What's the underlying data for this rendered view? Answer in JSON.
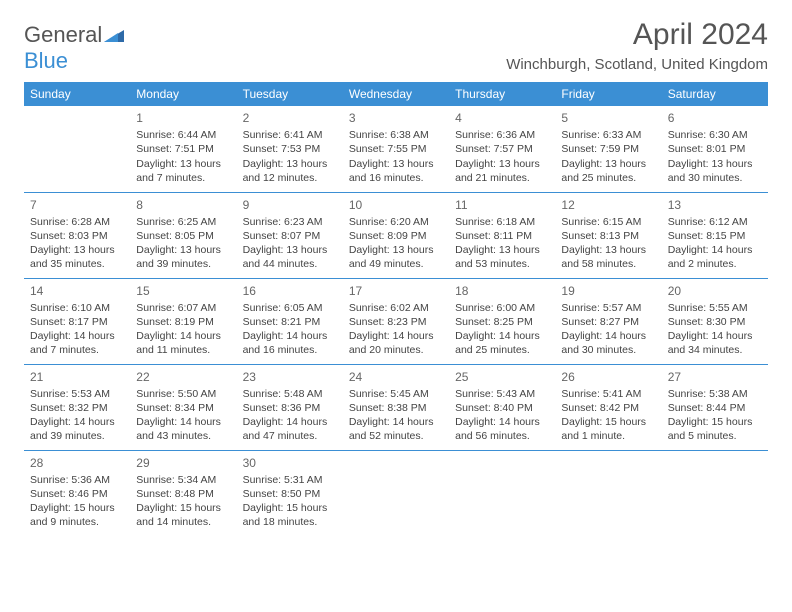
{
  "brand": {
    "name_part1": "General",
    "name_part2": "Blue"
  },
  "title": "April 2024",
  "location": "Winchburgh, Scotland, United Kingdom",
  "colors": {
    "header_bg": "#3b8fd4",
    "header_text": "#ffffff",
    "row_border": "#3b8fd4",
    "page_bg": "#ffffff",
    "text": "#444444",
    "title_text": "#555555"
  },
  "weekdays": [
    "Sunday",
    "Monday",
    "Tuesday",
    "Wednesday",
    "Thursday",
    "Friday",
    "Saturday"
  ],
  "weeks": [
    [
      null,
      {
        "n": "1",
        "sr": "Sunrise: 6:44 AM",
        "ss": "Sunset: 7:51 PM",
        "dl": "Daylight: 13 hours and 7 minutes."
      },
      {
        "n": "2",
        "sr": "Sunrise: 6:41 AM",
        "ss": "Sunset: 7:53 PM",
        "dl": "Daylight: 13 hours and 12 minutes."
      },
      {
        "n": "3",
        "sr": "Sunrise: 6:38 AM",
        "ss": "Sunset: 7:55 PM",
        "dl": "Daylight: 13 hours and 16 minutes."
      },
      {
        "n": "4",
        "sr": "Sunrise: 6:36 AM",
        "ss": "Sunset: 7:57 PM",
        "dl": "Daylight: 13 hours and 21 minutes."
      },
      {
        "n": "5",
        "sr": "Sunrise: 6:33 AM",
        "ss": "Sunset: 7:59 PM",
        "dl": "Daylight: 13 hours and 25 minutes."
      },
      {
        "n": "6",
        "sr": "Sunrise: 6:30 AM",
        "ss": "Sunset: 8:01 PM",
        "dl": "Daylight: 13 hours and 30 minutes."
      }
    ],
    [
      {
        "n": "7",
        "sr": "Sunrise: 6:28 AM",
        "ss": "Sunset: 8:03 PM",
        "dl": "Daylight: 13 hours and 35 minutes."
      },
      {
        "n": "8",
        "sr": "Sunrise: 6:25 AM",
        "ss": "Sunset: 8:05 PM",
        "dl": "Daylight: 13 hours and 39 minutes."
      },
      {
        "n": "9",
        "sr": "Sunrise: 6:23 AM",
        "ss": "Sunset: 8:07 PM",
        "dl": "Daylight: 13 hours and 44 minutes."
      },
      {
        "n": "10",
        "sr": "Sunrise: 6:20 AM",
        "ss": "Sunset: 8:09 PM",
        "dl": "Daylight: 13 hours and 49 minutes."
      },
      {
        "n": "11",
        "sr": "Sunrise: 6:18 AM",
        "ss": "Sunset: 8:11 PM",
        "dl": "Daylight: 13 hours and 53 minutes."
      },
      {
        "n": "12",
        "sr": "Sunrise: 6:15 AM",
        "ss": "Sunset: 8:13 PM",
        "dl": "Daylight: 13 hours and 58 minutes."
      },
      {
        "n": "13",
        "sr": "Sunrise: 6:12 AM",
        "ss": "Sunset: 8:15 PM",
        "dl": "Daylight: 14 hours and 2 minutes."
      }
    ],
    [
      {
        "n": "14",
        "sr": "Sunrise: 6:10 AM",
        "ss": "Sunset: 8:17 PM",
        "dl": "Daylight: 14 hours and 7 minutes."
      },
      {
        "n": "15",
        "sr": "Sunrise: 6:07 AM",
        "ss": "Sunset: 8:19 PM",
        "dl": "Daylight: 14 hours and 11 minutes."
      },
      {
        "n": "16",
        "sr": "Sunrise: 6:05 AM",
        "ss": "Sunset: 8:21 PM",
        "dl": "Daylight: 14 hours and 16 minutes."
      },
      {
        "n": "17",
        "sr": "Sunrise: 6:02 AM",
        "ss": "Sunset: 8:23 PM",
        "dl": "Daylight: 14 hours and 20 minutes."
      },
      {
        "n": "18",
        "sr": "Sunrise: 6:00 AM",
        "ss": "Sunset: 8:25 PM",
        "dl": "Daylight: 14 hours and 25 minutes."
      },
      {
        "n": "19",
        "sr": "Sunrise: 5:57 AM",
        "ss": "Sunset: 8:27 PM",
        "dl": "Daylight: 14 hours and 30 minutes."
      },
      {
        "n": "20",
        "sr": "Sunrise: 5:55 AM",
        "ss": "Sunset: 8:30 PM",
        "dl": "Daylight: 14 hours and 34 minutes."
      }
    ],
    [
      {
        "n": "21",
        "sr": "Sunrise: 5:53 AM",
        "ss": "Sunset: 8:32 PM",
        "dl": "Daylight: 14 hours and 39 minutes."
      },
      {
        "n": "22",
        "sr": "Sunrise: 5:50 AM",
        "ss": "Sunset: 8:34 PM",
        "dl": "Daylight: 14 hours and 43 minutes."
      },
      {
        "n": "23",
        "sr": "Sunrise: 5:48 AM",
        "ss": "Sunset: 8:36 PM",
        "dl": "Daylight: 14 hours and 47 minutes."
      },
      {
        "n": "24",
        "sr": "Sunrise: 5:45 AM",
        "ss": "Sunset: 8:38 PM",
        "dl": "Daylight: 14 hours and 52 minutes."
      },
      {
        "n": "25",
        "sr": "Sunrise: 5:43 AM",
        "ss": "Sunset: 8:40 PM",
        "dl": "Daylight: 14 hours and 56 minutes."
      },
      {
        "n": "26",
        "sr": "Sunrise: 5:41 AM",
        "ss": "Sunset: 8:42 PM",
        "dl": "Daylight: 15 hours and 1 minute."
      },
      {
        "n": "27",
        "sr": "Sunrise: 5:38 AM",
        "ss": "Sunset: 8:44 PM",
        "dl": "Daylight: 15 hours and 5 minutes."
      }
    ],
    [
      {
        "n": "28",
        "sr": "Sunrise: 5:36 AM",
        "ss": "Sunset: 8:46 PM",
        "dl": "Daylight: 15 hours and 9 minutes."
      },
      {
        "n": "29",
        "sr": "Sunrise: 5:34 AM",
        "ss": "Sunset: 8:48 PM",
        "dl": "Daylight: 15 hours and 14 minutes."
      },
      {
        "n": "30",
        "sr": "Sunrise: 5:31 AM",
        "ss": "Sunset: 8:50 PM",
        "dl": "Daylight: 15 hours and 18 minutes."
      },
      null,
      null,
      null,
      null
    ]
  ]
}
